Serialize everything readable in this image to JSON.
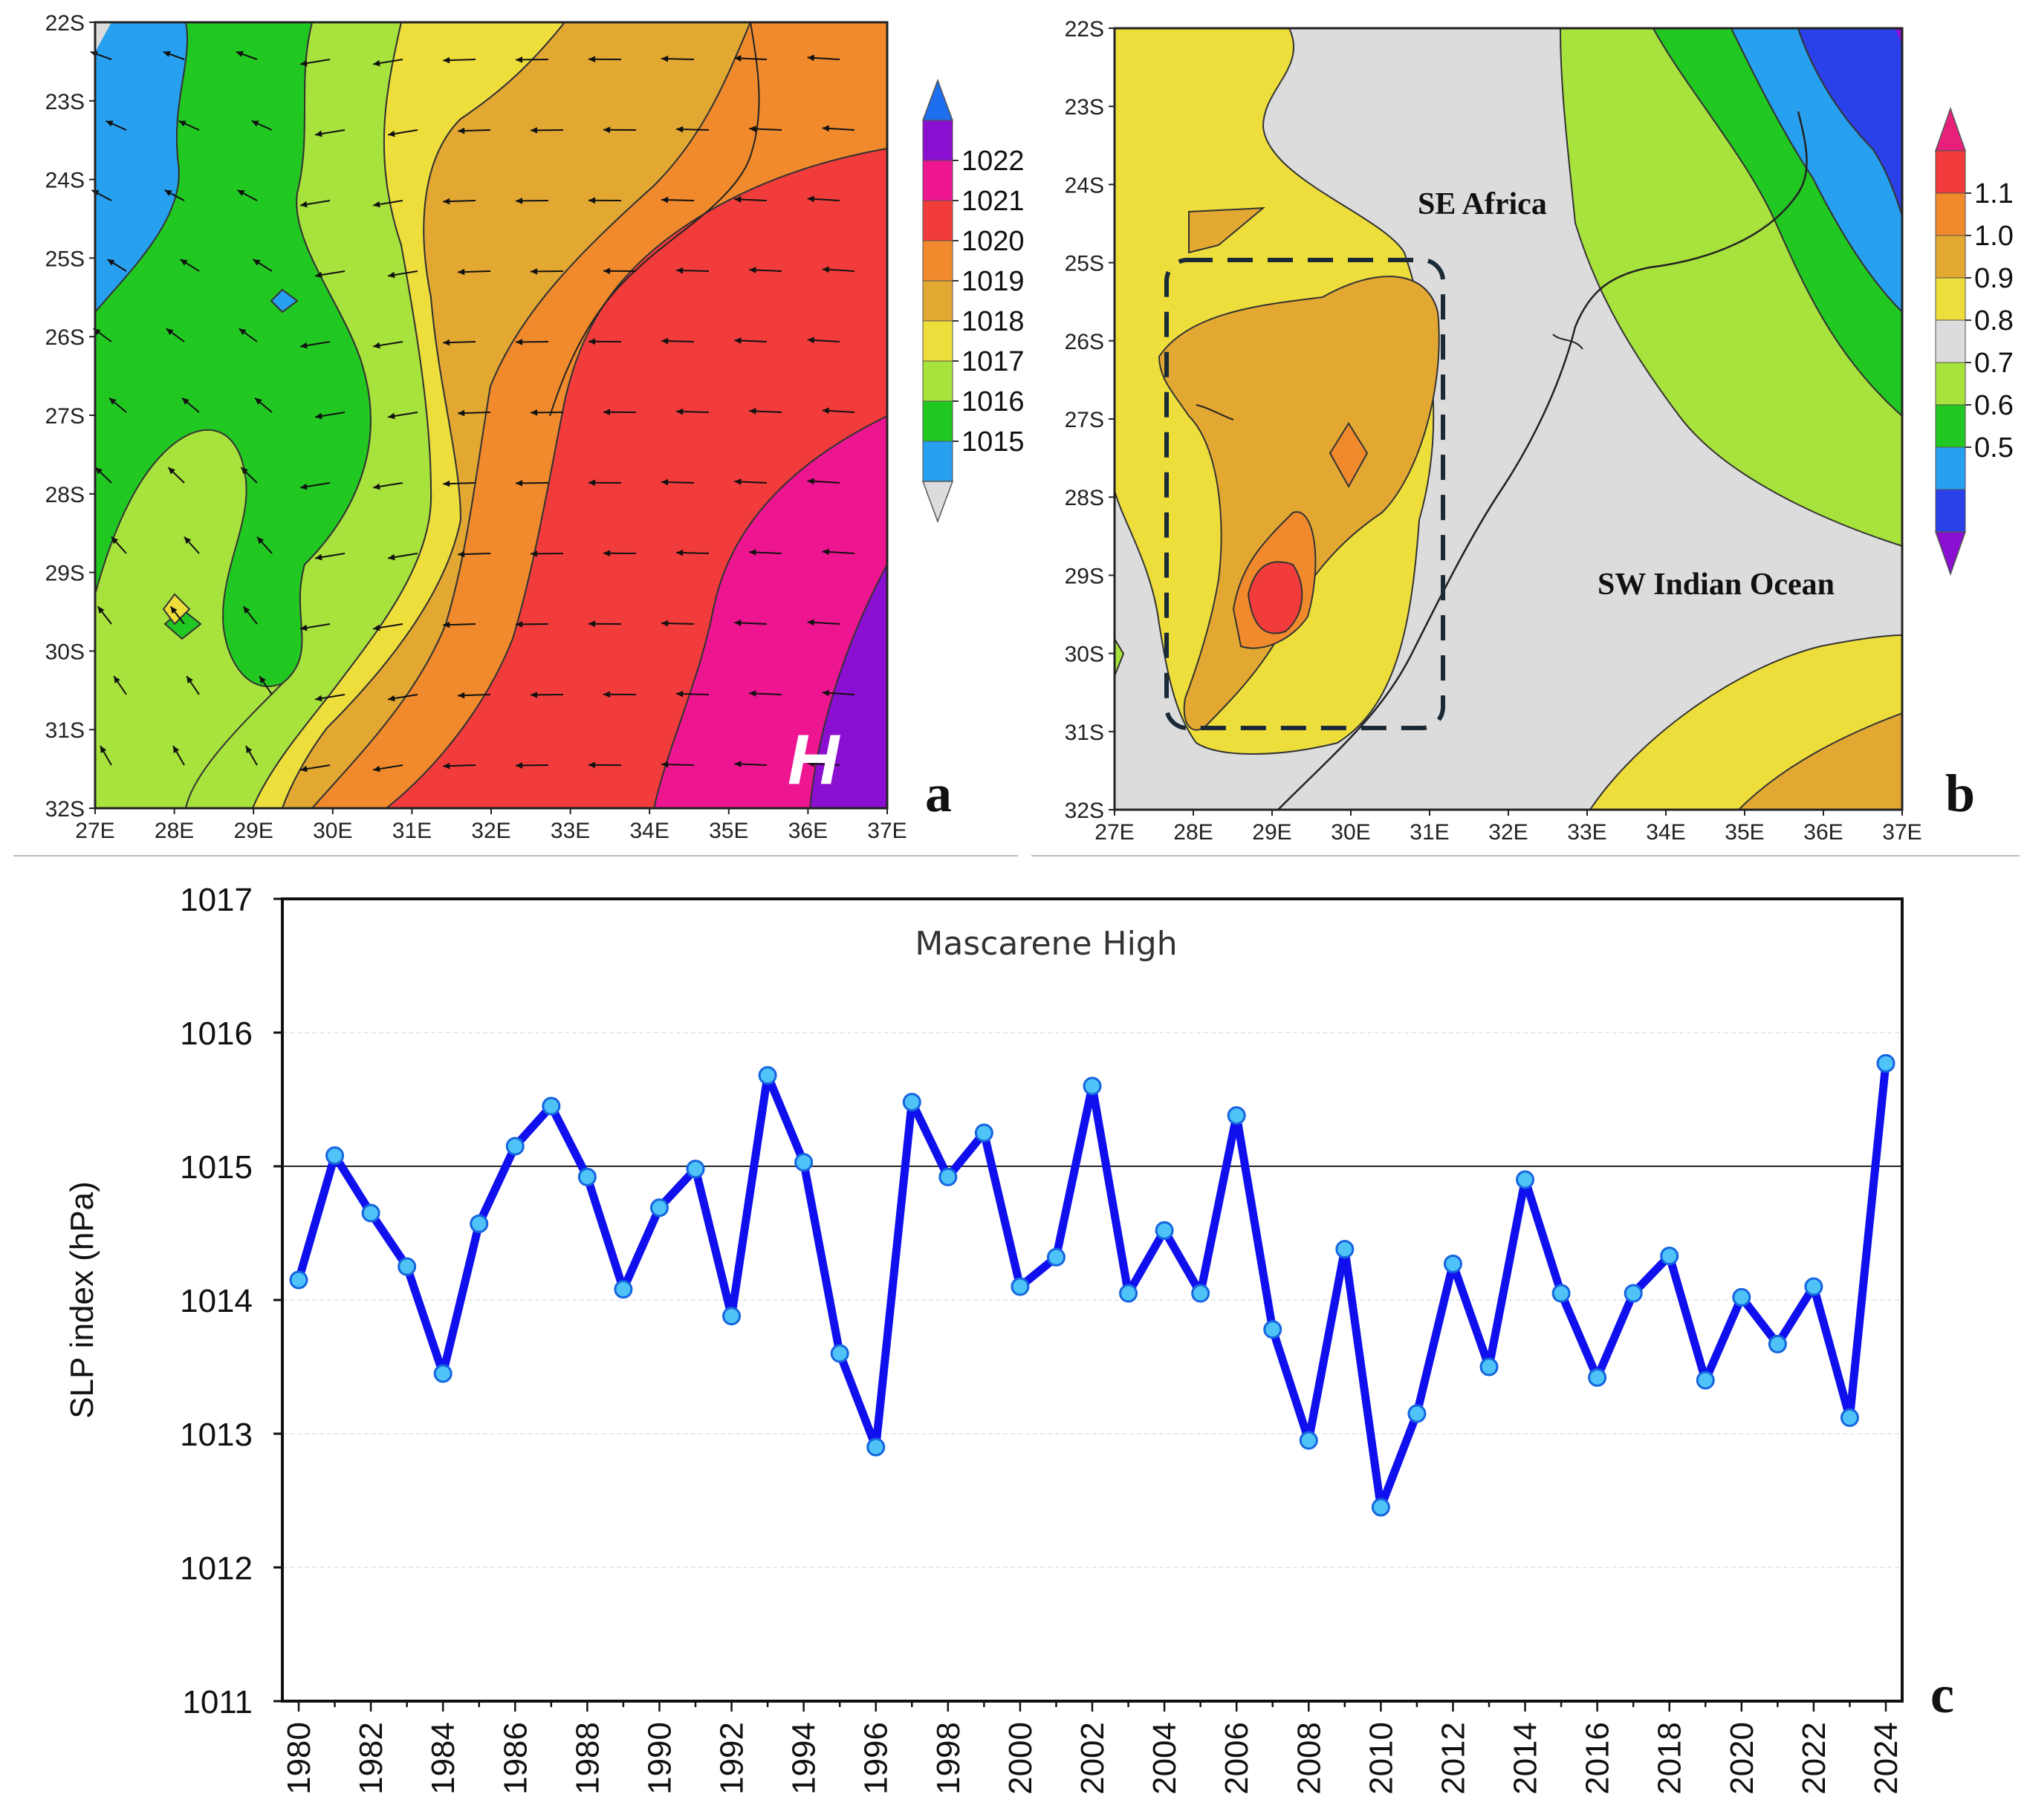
{
  "chart_data": [
    {
      "id": "a",
      "type": "contour_map",
      "panel_label": "a",
      "variable": "sea level pressure (hPa) with wind vectors",
      "x_ticks": [
        "27E",
        "28E",
        "29E",
        "30E",
        "31E",
        "32E",
        "33E",
        "34E",
        "35E",
        "36E",
        "37E"
      ],
      "y_ticks": [
        "22S",
        "23S",
        "24S",
        "25S",
        "26S",
        "27S",
        "28S",
        "29S",
        "30S",
        "31S",
        "32S"
      ],
      "colorbar_ticks": [
        "1022",
        "1021",
        "1020",
        "1019",
        "1018",
        "1017",
        "1016",
        "1015"
      ],
      "colorbar_colors": [
        "#1e6ef0",
        "#8a0fd0",
        "#ee1590",
        "#f23c3c",
        "#f08a2c",
        "#e2a832",
        "#eede3c",
        "#a8e23c",
        "#22c822",
        "#28a0f0",
        "#dcdcdc"
      ],
      "annotation": "H"
    },
    {
      "id": "b",
      "type": "contour_map",
      "panel_label": "b",
      "variable": "correlation field",
      "x_ticks": [
        "27E",
        "28E",
        "29E",
        "30E",
        "31E",
        "32E",
        "33E",
        "34E",
        "35E",
        "36E",
        "37E"
      ],
      "y_ticks": [
        "22S",
        "23S",
        "24S",
        "25S",
        "26S",
        "27S",
        "28S",
        "29S",
        "30S",
        "31S",
        "32S"
      ],
      "colorbar_ticks": [
        "1.1",
        "1.0",
        "0.9",
        "0.8",
        "0.7",
        "0.6",
        "0.5"
      ],
      "colorbar_colors": [
        "#e8207c",
        "#f23c3c",
        "#f08a2c",
        "#e2a832",
        "#eede3c",
        "#dcdcdc",
        "#a8e23c",
        "#22c822",
        "#28a0f0",
        "#2a40e8",
        "#8a0fd0"
      ],
      "annotations": [
        "SE Africa",
        "SW Indian Ocean"
      ]
    },
    {
      "id": "c",
      "type": "line",
      "panel_label": "c",
      "title": "Mascarene High",
      "ylabel": "SLP index (hPa)",
      "xlabel": "",
      "ylim": [
        1011,
        1017
      ],
      "yticks": [
        "1011",
        "1012",
        "1013",
        "1014",
        "1015",
        "1016",
        "1017"
      ],
      "reference_line": 1015,
      "x_tick_labels": [
        "1980",
        "1982",
        "1984",
        "1986",
        "1988",
        "1990",
        "1992",
        "1994",
        "1996",
        "1998",
        "2000",
        "2002",
        "2004",
        "2006",
        "2008",
        "2010",
        "2012",
        "2014",
        "2016",
        "2018",
        "2020",
        "2022",
        "2024"
      ],
      "x": [
        1980,
        1981,
        1982,
        1983,
        1984,
        1985,
        1986,
        1987,
        1988,
        1989,
        1990,
        1991,
        1992,
        1993,
        1994,
        1995,
        1996,
        1997,
        1998,
        1999,
        2000,
        2001,
        2002,
        2003,
        2004,
        2005,
        2006,
        2007,
        2008,
        2009,
        2010,
        2011,
        2012,
        2013,
        2014,
        2015,
        2016,
        2017,
        2018,
        2019,
        2020,
        2021,
        2022,
        2023,
        2024
      ],
      "series": [
        {
          "name": "Mascarene High",
          "color": "#1010ee",
          "values": [
            1014.15,
            1015.08,
            1014.65,
            1014.25,
            1013.45,
            1014.57,
            1015.15,
            1015.45,
            1014.92,
            1014.08,
            1014.69,
            1014.98,
            1013.88,
            1015.68,
            1015.03,
            1013.6,
            1012.9,
            1015.48,
            1014.92,
            1015.25,
            1014.1,
            1014.32,
            1015.6,
            1014.05,
            1014.52,
            1014.05,
            1015.38,
            1013.78,
            1012.95,
            1014.38,
            1012.45,
            1013.15,
            1014.27,
            1013.5,
            1014.9,
            1014.05,
            1013.42,
            1014.05,
            1014.33,
            1013.4,
            1014.02,
            1013.67,
            1014.1,
            1013.12,
            1015.77
          ]
        }
      ]
    }
  ]
}
